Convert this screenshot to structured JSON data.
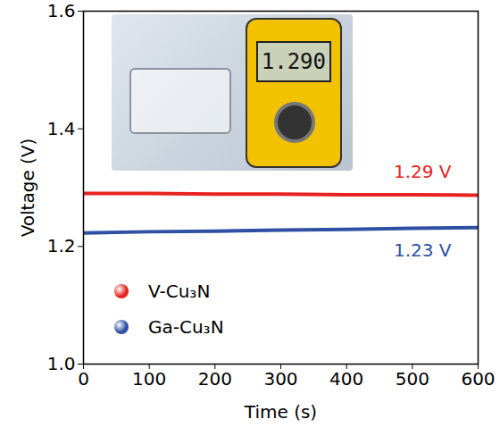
{
  "chart_data": {
    "type": "line",
    "x_label": "Time (s)",
    "y_label": "Voltage (V)",
    "x": [
      0,
      100,
      200,
      300,
      400,
      500,
      600
    ],
    "series": [
      {
        "name": "V-Cu₃N",
        "color": "#e8231f",
        "values": [
          1.29,
          1.29,
          1.289,
          1.289,
          1.288,
          1.288,
          1.287
        ]
      },
      {
        "name": "Ga-Cu₃N",
        "color": "#2e4fa3",
        "values": [
          1.223,
          1.225,
          1.226,
          1.228,
          1.229,
          1.231,
          1.232
        ]
      }
    ],
    "annotations": [
      "1.29 V",
      "1.23 V"
    ],
    "inset_display": "1.290",
    "xlim": [
      0,
      600
    ],
    "xticks": [
      0,
      100,
      200,
      300,
      400,
      500,
      600
    ],
    "ylim": [
      1.0,
      1.6
    ],
    "yticks": [
      {
        "value": 1.0,
        "label": "1.0"
      },
      1.2,
      1.4,
      {
        "value": 1.6,
        "label": "1.6"
      }
    ],
    "grid": false,
    "legend": "lower left"
  }
}
